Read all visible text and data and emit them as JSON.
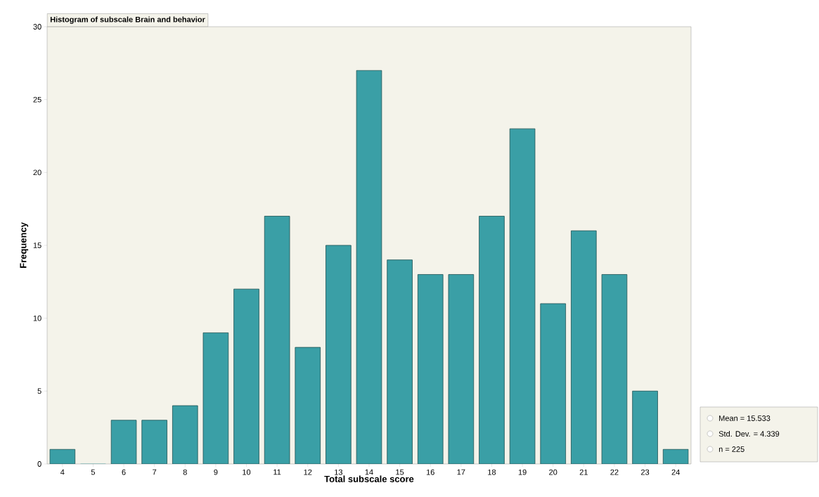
{
  "chart_data": {
    "type": "bar",
    "title": "Histogram of subscale Brain and behavior",
    "xlabel": "Total subscale score",
    "ylabel": "Frequency",
    "categories": [
      "4",
      "5",
      "6",
      "7",
      "8",
      "9",
      "10",
      "11",
      "12",
      "13",
      "14",
      "15",
      "16",
      "17",
      "18",
      "19",
      "20",
      "21",
      "22",
      "23",
      "24"
    ],
    "values": [
      1,
      0,
      3,
      3,
      4,
      9,
      12,
      17,
      8,
      15,
      27,
      14,
      13,
      13,
      17,
      23,
      11,
      16,
      13,
      5,
      1
    ],
    "color": "#3a9fa6",
    "ylim": [
      0,
      30
    ],
    "yticks": [
      0,
      5,
      10,
      15,
      20,
      25,
      30
    ],
    "annotations": [
      "Mean = 15.533",
      "Std. Dev. = 4.339",
      "n = 225"
    ]
  }
}
